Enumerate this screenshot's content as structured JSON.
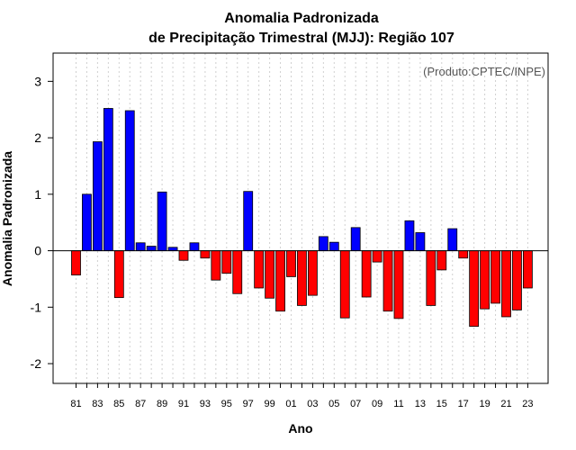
{
  "chart_data": {
    "type": "bar",
    "title_line1": "Anomalia Padronizada",
    "title_line2": "de Precipitação Trimestral (MJJ): Região 107",
    "annotation": "(Produto:CPTEC/INPE)",
    "xlabel": "Ano",
    "ylabel": "Anomalia Padronizada",
    "ylim": [
      -2.35,
      3.5
    ],
    "yticks": [
      -2,
      -1,
      0,
      1,
      2,
      3
    ],
    "ytick_labels": [
      "-2",
      "-1",
      "0",
      "1",
      "2",
      "3"
    ],
    "xtick_labels": [
      "81",
      "83",
      "85",
      "87",
      "89",
      "91",
      "93",
      "95",
      "97",
      "99",
      "01",
      "03",
      "05",
      "07",
      "09",
      "11",
      "13",
      "15",
      "17",
      "19",
      "21",
      "23"
    ],
    "categories": [
      "1981",
      "1982",
      "1983",
      "1984",
      "1985",
      "1986",
      "1987",
      "1988",
      "1989",
      "1990",
      "1991",
      "1992",
      "1993",
      "1994",
      "1995",
      "1996",
      "1997",
      "1998",
      "1999",
      "2000",
      "2001",
      "2002",
      "2003",
      "2004",
      "2005",
      "2006",
      "2007",
      "2008",
      "2009",
      "2010",
      "2011",
      "2012",
      "2013",
      "2014",
      "2015",
      "2016",
      "2017",
      "2018",
      "2019",
      "2020",
      "2021",
      "2022",
      "2023"
    ],
    "values": [
      -0.43,
      1.0,
      1.93,
      2.52,
      -0.83,
      2.48,
      0.14,
      0.08,
      1.04,
      0.06,
      -0.17,
      0.14,
      -0.13,
      -0.52,
      -0.4,
      -0.76,
      1.05,
      -0.66,
      -0.84,
      -1.07,
      -0.46,
      -0.97,
      -0.79,
      0.25,
      0.15,
      -1.19,
      0.41,
      -0.82,
      -0.2,
      -1.07,
      -1.2,
      0.53,
      0.32,
      -0.97,
      -0.34,
      0.39,
      -0.13,
      -1.34,
      -1.03,
      -0.93,
      -1.17,
      -1.05,
      -0.66
    ],
    "colors": {
      "positive": "#0000ff",
      "negative": "#ff0000",
      "grid": "#d0d0d0"
    },
    "grid": true
  }
}
